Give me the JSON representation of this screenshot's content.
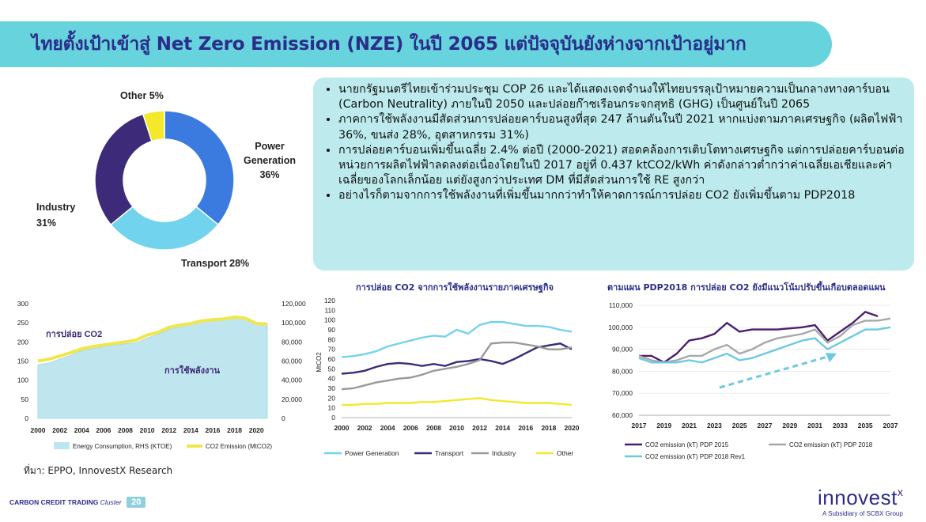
{
  "header": {
    "title": "ไทยตั้งเป้าเข้าสู่ Net Zero Emission (NZE) ในปี 2065 แต่ปัจจุบันยังห่างจากเป้าอยู่มาก"
  },
  "bullets": [
    "นายกรัฐมนตรีไทยเข้าร่วมประชุม COP 26 และได้แสดงเจตจำนงให้ไทยบรรลุเป้าหมายความเป็นกลางทางคาร์บอน (Carbon Neutrality) ภายในปี 2050 และปล่อยก๊าซเรือนกระจกสุทธิ (GHG) เป็นศูนย์ในปี 2065",
    "ภาคการใช้พลังงานมีสัดส่วนการปล่อยคาร์บอนสูงที่สุด 247 ล้านตันในปี 2021 หากแบ่งตามภาคเศรษฐกิจ (ผลิตไฟฟ้า 36%, ขนส่ง 28%, อุตสาหกรรม 31%)",
    "การปล่อยคาร์บอนเพิ่มขึ้นเฉลี่ย 2.4% ต่อปี (2000-2021) สอดคล้องการเติบโตทางเศรษฐกิจ แต่การปล่อยคาร์บอนต่อหน่วยการผลิตไฟฟ้าลดลงต่อเนื่องโดยในปี 2017 อยู่ที่ 0.437 ktCO2/kWh ค่าดังกล่าวต่ำกว่าค่าเฉลี่ยเอเชียและค่าเฉลี่ยของโลกเล็กน้อย แต่ยังสูงกว่าประเทศ DM ที่มีสัดส่วนการใช้ RE สูงกว่า",
    "อย่างไรก็ตามจากการใช้พลังงานที่เพิ่มขึ้นมากกว่าทำให้คาดการณ์การปล่อย CO2 ยังเพิ่มขึ้นตาม PDP2018"
  ],
  "source": "ที่มา: EPPO, InnovestX Research",
  "footer": {
    "left": "CARBON CREDIT TRADING",
    "cluster": "Cluster",
    "page": "20"
  },
  "logo": {
    "name": "innovest",
    "x": "x",
    "sub": "A Subsidiary of SCBX Group"
  },
  "colors": {
    "power": "#3b7be0",
    "transport": "#72d3ee",
    "industry": "#3d2a78",
    "other": "#f3e92a",
    "accent": "#2b2d8a"
  },
  "chart_data": [
    {
      "type": "pie",
      "labels": [
        "Power Generation",
        "Transport",
        "Industry",
        "Other"
      ],
      "values": [
        36,
        28,
        31,
        5
      ],
      "label_text": [
        "Power\nGeneration\n36%",
        "Transport 28%",
        "Industry\n31%",
        "Other 5%"
      ]
    },
    {
      "type": "area",
      "x": [
        2000,
        2001,
        2002,
        2003,
        2004,
        2005,
        2006,
        2007,
        2008,
        2009,
        2010,
        2011,
        2012,
        2013,
        2014,
        2015,
        2016,
        2017,
        2018,
        2019,
        2020,
        2021
      ],
      "xticks": [
        "2000",
        "2002",
        "2004",
        "2006",
        "2008",
        "2010",
        "2012",
        "2014",
        "2016",
        "2018",
        "2020"
      ],
      "yticks_left": [
        "0",
        "50",
        "100",
        "150",
        "200",
        "250",
        "300"
      ],
      "yticks_right": [
        "0",
        "20,000",
        "40,000",
        "60,000",
        "80,000",
        "100,000",
        "120,000"
      ],
      "ylim_left": [
        0,
        300
      ],
      "ylim_right": [
        0,
        120000
      ],
      "annotations": [
        "การปล่อย CO2",
        "การใช้พลังงาน"
      ],
      "series": [
        {
          "name": "Energy Consumption, RHS (KTOE)",
          "axis": "right",
          "values": [
            56000,
            58000,
            62000,
            66000,
            71000,
            73000,
            75000,
            77000,
            78000,
            79000,
            84000,
            88000,
            93000,
            96000,
            99000,
            101000,
            103000,
            104000,
            105000,
            104000,
            99000,
            98000
          ]
        },
        {
          "name": "CO2 Emission (MtCO2)",
          "axis": "left",
          "values": [
            150,
            155,
            163,
            172,
            182,
            188,
            192,
            196,
            200,
            205,
            218,
            225,
            238,
            244,
            248,
            255,
            258,
            260,
            265,
            262,
            248,
            247
          ]
        }
      ]
    },
    {
      "type": "line",
      "title": "การปล่อย CO2 จากการใช้พลังงานรายภาคเศรษฐกิจ",
      "ylabel": "MtCO2",
      "x": [
        2000,
        2001,
        2002,
        2003,
        2004,
        2005,
        2006,
        2007,
        2008,
        2009,
        2010,
        2011,
        2012,
        2013,
        2014,
        2015,
        2016,
        2017,
        2018,
        2019,
        2020
      ],
      "xticks": [
        "2000",
        "2002",
        "2004",
        "2006",
        "2008",
        "2010",
        "2012",
        "2014",
        "2016",
        "2018",
        "2020"
      ],
      "yticks": [
        "0",
        "10",
        "20",
        "30",
        "40",
        "50",
        "60",
        "70",
        "80",
        "90",
        "100",
        "110",
        "120"
      ],
      "ylim": [
        0,
        120
      ],
      "series": [
        {
          "name": "Power Generation",
          "values": [
            62,
            63,
            65,
            68,
            73,
            76,
            79,
            82,
            84,
            83,
            90,
            86,
            95,
            98,
            98,
            96,
            94,
            94,
            93,
            90,
            88
          ]
        },
        {
          "name": "Transport",
          "values": [
            45,
            46,
            48,
            52,
            55,
            56,
            55,
            53,
            55,
            53,
            57,
            58,
            60,
            58,
            55,
            60,
            66,
            72,
            74,
            76,
            70
          ]
        },
        {
          "name": "Industry",
          "values": [
            29,
            30,
            33,
            36,
            38,
            40,
            41,
            44,
            48,
            50,
            52,
            55,
            59,
            76,
            77,
            77,
            75,
            73,
            70,
            70,
            72
          ]
        },
        {
          "name": "Other",
          "values": [
            13,
            13,
            14,
            14,
            15,
            15,
            15,
            16,
            16,
            17,
            18,
            19,
            20,
            18,
            17,
            16,
            15,
            15,
            15,
            14,
            13
          ]
        }
      ]
    },
    {
      "type": "line",
      "title": "ตามแผน PDP2018 การปล่อย CO2 ยังมีแนวโน้มปรับขึ้นเกือบตลอดแผน",
      "x": [
        2017,
        2018,
        2019,
        2020,
        2021,
        2022,
        2023,
        2024,
        2025,
        2026,
        2027,
        2028,
        2029,
        2030,
        2031,
        2032,
        2033,
        2034,
        2035,
        2036,
        2037
      ],
      "xticks": [
        "2017",
        "2019",
        "2021",
        "2023",
        "2025",
        "2027",
        "2029",
        "2031",
        "2033",
        "2035",
        "2037"
      ],
      "yticks": [
        "60,000",
        "70,000",
        "80,000",
        "90,000",
        "100,000",
        "110,000"
      ],
      "ylim": [
        60000,
        110000
      ],
      "series": [
        {
          "name": "CO2 emission (kT) PDP 2015",
          "values": [
            87000,
            87000,
            84000,
            88000,
            94000,
            95000,
            97000,
            102000,
            98000,
            99000,
            99000,
            99000,
            99500,
            100000,
            101000,
            94000,
            98000,
            102000,
            107000,
            105000,
            null
          ]
        },
        {
          "name": "CO2 emission (kT) PDP 2018",
          "values": [
            87000,
            85000,
            84000,
            85000,
            87000,
            87000,
            90000,
            92000,
            88000,
            90000,
            93000,
            95000,
            96000,
            97000,
            99000,
            93000,
            96000,
            101000,
            103000,
            103000,
            104000
          ]
        },
        {
          "name": "CO2 emission (kT) PDP 2018 Rev1",
          "values": [
            86000,
            84000,
            84000,
            84000,
            85000,
            84000,
            86000,
            88000,
            85000,
            86000,
            88000,
            90000,
            92000,
            94000,
            95000,
            90000,
            93000,
            96000,
            99000,
            99000,
            100000
          ]
        }
      ]
    }
  ]
}
